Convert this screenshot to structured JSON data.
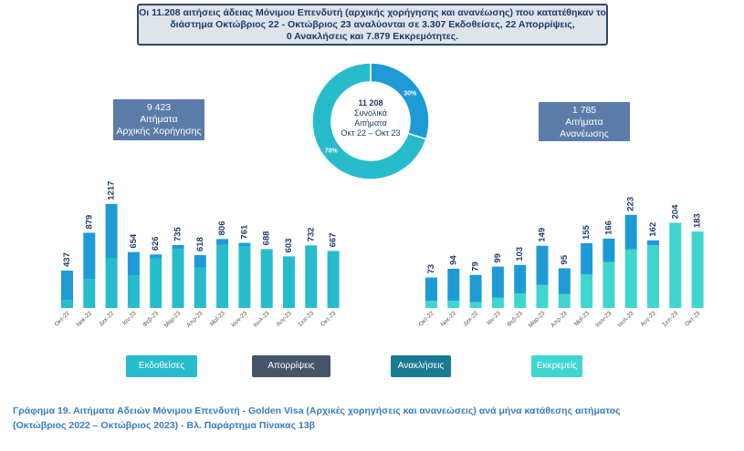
{
  "summary": {
    "line1": "Οι 11.208 αιτήσεις άδειας Μόνιμου Επενδυτή (αρχικής χορήγησης και ανανέωσης) που κατατέθηκαν το",
    "line2": "διάστημα Οκτώβριος 22 - Οκτώβριος 23 αναλύονται σε 3.307 Εκδοθείσες, 22 Απορρίψεις,",
    "line3": "0 Ανακλήσεις και 7.879 Εκκρεμότητες."
  },
  "callout_left": {
    "value": "9 423",
    "line1": "Αιτήματα",
    "line2": "Αρχικής Χορήγησης"
  },
  "callout_right": {
    "value": "1 785",
    "line1": "Αιτήματα",
    "line2": "Ανανέωσης"
  },
  "donut": {
    "center_value": "11 208",
    "center_line1": "Συνολικά",
    "center_line2": "Αιτήματα",
    "center_line3": "Οκτ 22 – Οκτ 23"
  },
  "legend": {
    "ekdoseis": "Εκδοθείσες",
    "aporripseis": "Απορρίψεις",
    "anakliseis": "Ανακλήσεις",
    "ekkremeis": "Εκκρεμείς"
  },
  "colors": {
    "ekdoseis": "#26bccb",
    "ekkremeis": "#3ed6cf",
    "dark_segment": "#1e9bd7",
    "donut_main": "#26bccb",
    "donut_minor": "#1e9bd7",
    "value_label": "#1d3a6b"
  },
  "caption": {
    "line1": "Γράφημα 19. Αιτήματα Αδειών Μόνιμου Επενδυτή - Golden Visa (Αρχικές χορηγήσεις και ανανεώσεις) ανά μήνα κατάθεσης αιτήματος",
    "line2": "(Οκτώβριος 2022 – Οκτώβριος 2023) - Βλ. Παράρτημα  Πίνακας 13β"
  },
  "chart_data": [
    {
      "type": "pie",
      "categories": [
        "",
        ""
      ],
      "values": [
        70,
        30
      ],
      "labels": [
        "70%",
        "30%"
      ],
      "title": ""
    },
    {
      "type": "bar",
      "title": "",
      "categories": [
        "Οκτ-22",
        "Νοε-22",
        "Δεκ-22",
        "Ιαν-23",
        "Φεβ-23",
        "Μαρ-23",
        "Απρ-23",
        "Μαΐ-23",
        "Ιουν-23",
        "Ιουλ-23",
        "Αυγ-23",
        "Σεπ-23",
        "Οκτ-23"
      ],
      "totals": [
        437,
        879,
        1217,
        654,
        626,
        735,
        618,
        806,
        761,
        688,
        603,
        732,
        667
      ],
      "series": [
        {
          "values": [
            95,
            340,
            580,
            380,
            580,
            690,
            470,
            740,
            720,
            680,
            598,
            732,
            667
          ]
        },
        {
          "values": [
            342,
            539,
            637,
            274,
            46,
            45,
            148,
            66,
            41,
            8,
            5,
            0,
            0
          ]
        }
      ],
      "ylim": [
        0,
        1300
      ]
    },
    {
      "type": "bar",
      "title": "",
      "categories": [
        "Οκτ-22",
        "Νοε-22",
        "Δεκ-22",
        "Ιαν-23",
        "Φεβ-23",
        "Μαρ-23",
        "Απρ-23",
        "Μαΐ-23",
        "Ιουν-23",
        "Ιουλ-23",
        "Αυγ-23",
        "Σεπ-23",
        "Οκτ-23"
      ],
      "totals": [
        73,
        94,
        79,
        99,
        103,
        149,
        95,
        155,
        166,
        223,
        162,
        204,
        183
      ],
      "series": [
        {
          "values": [
            17,
            17,
            14,
            25,
            35,
            55,
            33,
            80,
            110,
            140,
            150,
            204,
            183
          ]
        },
        {
          "values": [
            56,
            77,
            65,
            74,
            68,
            94,
            62,
            75,
            56,
            83,
            12,
            0,
            0
          ]
        }
      ],
      "ylim": [
        0,
        240
      ]
    }
  ]
}
